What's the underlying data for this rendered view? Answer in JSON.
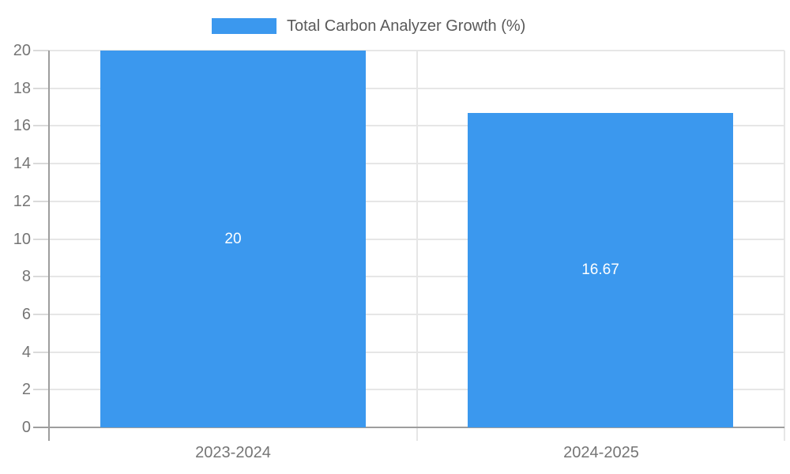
{
  "chart_data": {
    "type": "bar",
    "title": "Total Carbon Analyzer Growth (%)",
    "legend": {
      "label": "Total Carbon Analyzer Growth (%)",
      "position": "top-center"
    },
    "categories": [
      "2023-2024",
      "2024-2025"
    ],
    "series": [
      {
        "name": "Total Carbon Analyzer Growth (%)",
        "values": [
          20,
          16.67
        ],
        "value_labels": [
          "20",
          "16.67"
        ]
      }
    ],
    "xlabel": "",
    "ylabel": "",
    "ylim": [
      0,
      20
    ],
    "yticks": [
      0,
      2,
      4,
      6,
      8,
      10,
      12,
      14,
      16,
      18,
      20
    ],
    "grid": true,
    "colors": {
      "bar": "#3b98ee",
      "gridline": "#e6e6e6",
      "tick_dash": "#dadada",
      "axis": "#9e9e9e",
      "tick_label": "#757575",
      "legend_text": "#5a5a5a",
      "data_label": "#ffffff",
      "background": "#ffffff"
    }
  }
}
